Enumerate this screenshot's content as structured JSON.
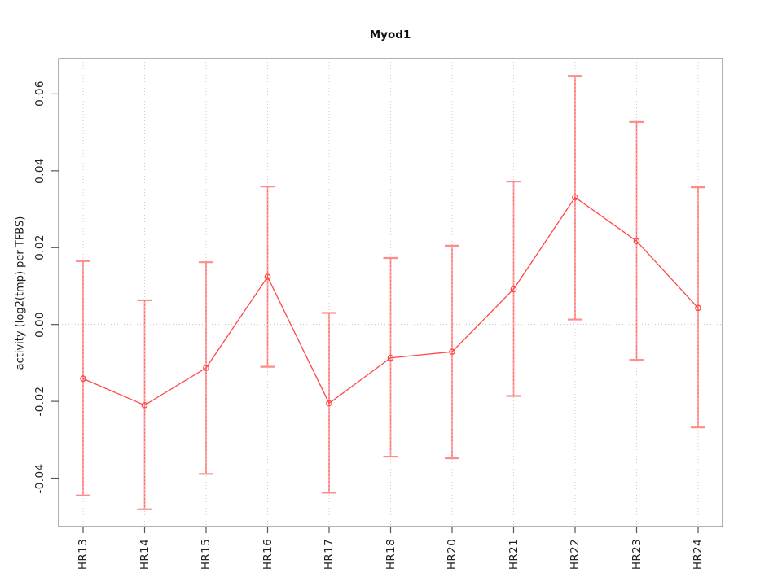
{
  "chart_data": {
    "type": "line",
    "title": "Myod1",
    "xlabel": "",
    "ylabel": "activity (log2(tmp) per TFBS)",
    "categories": [
      "HR13",
      "HR14",
      "HR15",
      "HR16",
      "HR17",
      "HR18",
      "HR20",
      "HR21",
      "HR22",
      "HR23",
      "HR24"
    ],
    "series": [
      {
        "name": "activity",
        "values": [
          -0.0141,
          -0.021,
          -0.0113,
          0.0124,
          -0.0205,
          -0.0087,
          -0.0071,
          0.0092,
          0.0331,
          0.0217,
          0.0043
        ]
      }
    ],
    "error_bars": {
      "upper": [
        0.0165,
        0.0063,
        0.0162,
        0.0359,
        0.003,
        0.0173,
        0.0205,
        0.0372,
        0.0647,
        0.0527,
        0.0357
      ],
      "lower": [
        -0.0445,
        -0.0481,
        -0.0389,
        -0.011,
        -0.0438,
        -0.0344,
        -0.0348,
        -0.0186,
        0.0013,
        -0.0092,
        -0.0268
      ]
    },
    "ylim": [
      -0.0526,
      0.0692
    ],
    "yticks": [
      -0.04,
      -0.02,
      0.0,
      0.02,
      0.04,
      0.06
    ],
    "ytick_labels": [
      "-0.04",
      "-0.02",
      "0.00",
      "0.02",
      "0.04",
      "0.06"
    ],
    "grid": {
      "vertical_dotted_at_categories": true,
      "horizontal_zero_line_dotted": true
    },
    "legend": "none",
    "marker": "open-circle",
    "colors": {
      "line": "#ff4747",
      "marker": "#ff4747",
      "error_bar": "#ffa8a8",
      "error_bar_dash": "#ff6666",
      "error_cap": "#ff8b8b",
      "grid": "#cccccc",
      "zero_line": "#c4c4c4",
      "frame": "#7d7d7d",
      "tick": "#555555",
      "text": "#222222"
    }
  }
}
